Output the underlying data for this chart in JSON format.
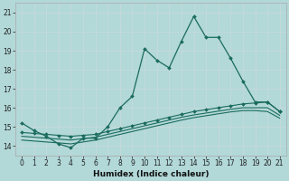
{
  "xlabel": "Humidex (Indice chaleur)",
  "bg_color": "#b2d8d8",
  "line_color": "#1a6b5e",
  "grid_color": "#d8eded",
  "x_ticks": [
    0,
    1,
    2,
    3,
    4,
    5,
    6,
    7,
    8,
    9,
    10,
    11,
    12,
    13,
    14,
    15,
    16,
    17,
    18,
    19,
    20,
    21
  ],
  "y_ticks": [
    14,
    15,
    16,
    17,
    18,
    19,
    20,
    21
  ],
  "xlim": [
    -0.5,
    21.5
  ],
  "ylim": [
    13.5,
    21.5
  ],
  "line1_x": [
    0,
    1,
    2,
    3,
    4,
    5,
    6,
    7,
    8,
    9,
    10,
    11,
    12,
    13,
    14,
    15,
    16,
    17,
    18,
    19,
    20,
    21
  ],
  "line1_y": [
    15.2,
    14.8,
    14.5,
    14.1,
    13.9,
    14.4,
    14.4,
    15.0,
    16.0,
    16.6,
    19.1,
    18.5,
    18.1,
    19.5,
    20.8,
    19.7,
    19.7,
    18.6,
    17.4,
    16.3,
    16.3,
    15.8
  ],
  "line2_x": [
    0,
    1,
    2,
    3,
    4,
    5,
    6,
    7,
    8,
    9,
    10,
    11,
    12,
    13,
    14,
    15,
    16,
    17,
    18,
    19,
    20,
    21
  ],
  "line2_y": [
    14.7,
    14.65,
    14.6,
    14.55,
    14.5,
    14.55,
    14.6,
    14.75,
    14.9,
    15.05,
    15.2,
    15.35,
    15.5,
    15.65,
    15.8,
    15.9,
    16.0,
    16.1,
    16.2,
    16.25,
    16.3,
    15.8
  ],
  "line3_x": [
    0,
    1,
    2,
    3,
    4,
    5,
    6,
    7,
    8,
    9,
    10,
    11,
    12,
    13,
    14,
    15,
    16,
    17,
    18,
    19,
    20,
    21
  ],
  "line3_y": [
    14.5,
    14.45,
    14.4,
    14.35,
    14.3,
    14.38,
    14.45,
    14.6,
    14.75,
    14.9,
    15.05,
    15.2,
    15.35,
    15.5,
    15.62,
    15.72,
    15.82,
    15.92,
    16.0,
    16.0,
    16.0,
    15.6
  ],
  "line4_x": [
    0,
    1,
    2,
    3,
    4,
    5,
    6,
    7,
    8,
    9,
    10,
    11,
    12,
    13,
    14,
    15,
    16,
    17,
    18,
    19,
    20,
    21
  ],
  "line4_y": [
    14.3,
    14.25,
    14.2,
    14.15,
    14.1,
    14.2,
    14.3,
    14.45,
    14.6,
    14.75,
    14.9,
    15.05,
    15.2,
    15.35,
    15.48,
    15.58,
    15.68,
    15.78,
    15.85,
    15.85,
    15.8,
    15.45
  ]
}
